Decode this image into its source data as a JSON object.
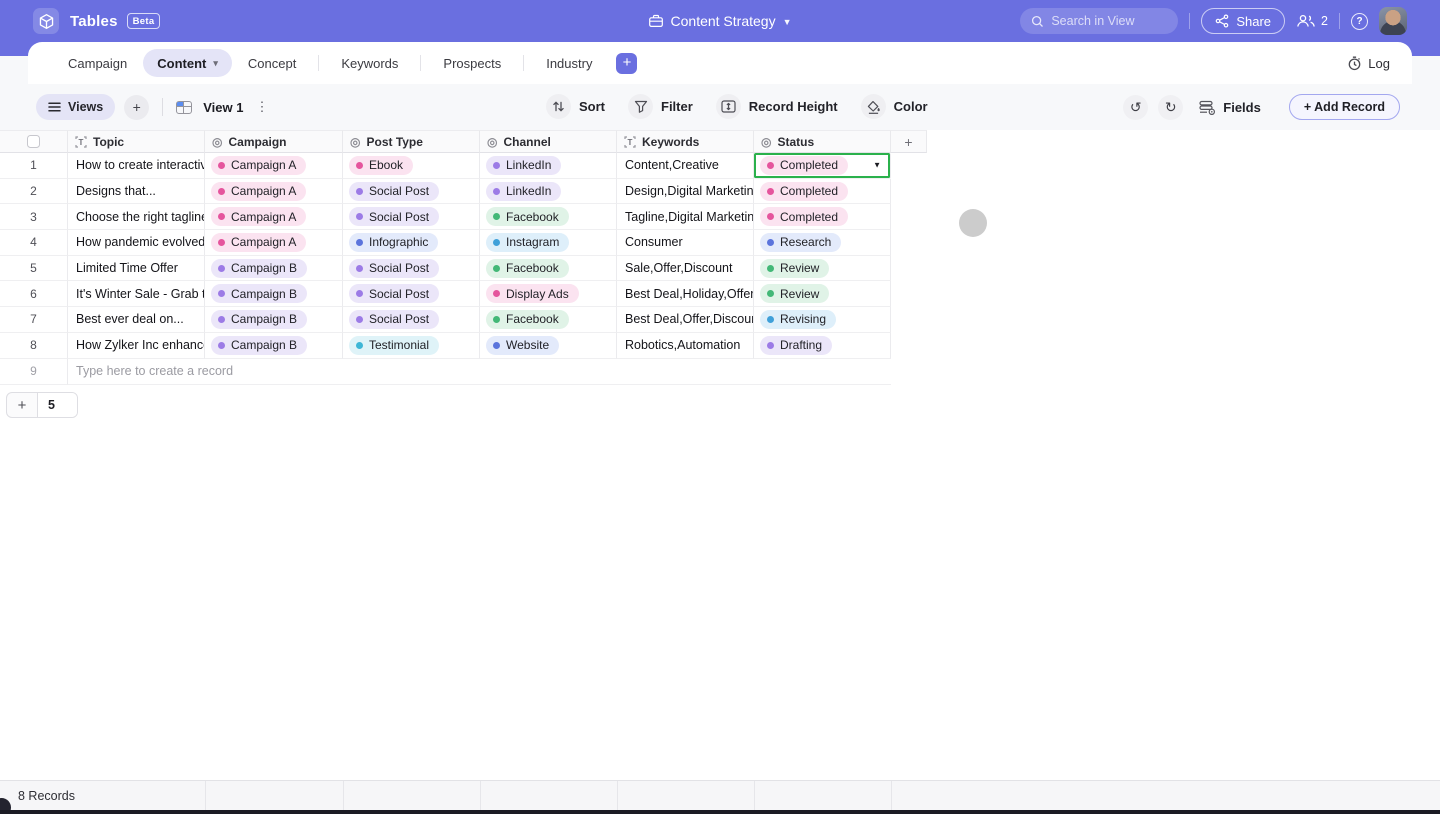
{
  "topbar": {
    "app_name": "Tables",
    "beta_badge": "Beta",
    "workspace_label": "Content Strategy",
    "search_placeholder": "Search in View",
    "share_label": "Share",
    "collaborators_count": "2"
  },
  "tabs": {
    "items": [
      {
        "label": "Campaign",
        "active": false,
        "divider_after": false
      },
      {
        "label": "Content",
        "active": true,
        "divider_after": false
      },
      {
        "label": "Concept",
        "active": false,
        "divider_after": true
      },
      {
        "label": "Keywords",
        "active": false,
        "divider_after": true
      },
      {
        "label": "Prospects",
        "active": false,
        "divider_after": true
      },
      {
        "label": "Industry",
        "active": false,
        "divider_after": false
      }
    ],
    "add_table_label": "+",
    "log_label": "Log"
  },
  "toolbar": {
    "views_label": "Views",
    "add_view_label": "+",
    "view_name": "View 1",
    "sort_label": "Sort",
    "filter_label": "Filter",
    "record_height_label": "Record Height",
    "color_label": "Color",
    "fields_label": "Fields",
    "add_record_label": "+ Add Record"
  },
  "table": {
    "columns": [
      {
        "label": "Topic",
        "icon": "text-field-icon"
      },
      {
        "label": "Campaign",
        "icon": "select-field-icon"
      },
      {
        "label": "Post Type",
        "icon": "select-field-icon"
      },
      {
        "label": "Channel",
        "icon": "select-field-icon"
      },
      {
        "label": "Keywords",
        "icon": "text-field-icon"
      },
      {
        "label": "Status",
        "icon": "select-field-icon"
      }
    ],
    "add_column_label": "+",
    "rows": [
      {
        "num": "1",
        "topic": "How to create interactiv...",
        "campaign": {
          "label": "Campaign A",
          "color": "pink"
        },
        "post_type": {
          "label": "Ebook",
          "color": "pink"
        },
        "channel": {
          "label": "LinkedIn",
          "color": "purple"
        },
        "keywords": "Content,Creative",
        "status": {
          "label": "Completed",
          "color": "pink"
        },
        "selected": true
      },
      {
        "num": "2",
        "topic": "Designs that...",
        "campaign": {
          "label": "Campaign A",
          "color": "pink"
        },
        "post_type": {
          "label": "Social Post",
          "color": "purple"
        },
        "channel": {
          "label": "LinkedIn",
          "color": "purple"
        },
        "keywords": "Design,Digital Marketing",
        "status": {
          "label": "Completed",
          "color": "pink"
        },
        "selected": false
      },
      {
        "num": "3",
        "topic": "Choose the right tagline...",
        "campaign": {
          "label": "Campaign A",
          "color": "pink"
        },
        "post_type": {
          "label": "Social Post",
          "color": "purple"
        },
        "channel": {
          "label": "Facebook",
          "color": "green"
        },
        "keywords": "Tagline,Digital Marketing",
        "status": {
          "label": "Completed",
          "color": "pink"
        },
        "selected": false
      },
      {
        "num": "4",
        "topic": "How pandemic evolved...",
        "campaign": {
          "label": "Campaign A",
          "color": "pink"
        },
        "post_type": {
          "label": "Infographic",
          "color": "indigo"
        },
        "channel": {
          "label": "Instagram",
          "color": "blue"
        },
        "keywords": "Consumer",
        "status": {
          "label": "Research",
          "color": "indigo"
        },
        "selected": false
      },
      {
        "num": "5",
        "topic": "Limited Time Offer",
        "campaign": {
          "label": "Campaign B",
          "color": "purple"
        },
        "post_type": {
          "label": "Social Post",
          "color": "purple"
        },
        "channel": {
          "label": "Facebook",
          "color": "green"
        },
        "keywords": "Sale,Offer,Discount",
        "status": {
          "label": "Review",
          "color": "green"
        },
        "selected": false
      },
      {
        "num": "6",
        "topic": "It's Winter Sale - Grab th...",
        "campaign": {
          "label": "Campaign B",
          "color": "purple"
        },
        "post_type": {
          "label": "Social Post",
          "color": "purple"
        },
        "channel": {
          "label": "Display Ads",
          "color": "pink"
        },
        "keywords": "Best Deal,Holiday,Offer",
        "status": {
          "label": "Review",
          "color": "green"
        },
        "selected": false
      },
      {
        "num": "7",
        "topic": "Best ever deal on...",
        "campaign": {
          "label": "Campaign B",
          "color": "purple"
        },
        "post_type": {
          "label": "Social Post",
          "color": "purple"
        },
        "channel": {
          "label": "Facebook",
          "color": "green"
        },
        "keywords": "Best Deal,Offer,Discount",
        "status": {
          "label": "Revising",
          "color": "blue"
        },
        "selected": false
      },
      {
        "num": "8",
        "topic": "How Zylker Inc enhance...",
        "campaign": {
          "label": "Campaign B",
          "color": "purple"
        },
        "post_type": {
          "label": "Testimonial",
          "color": "cyan"
        },
        "channel": {
          "label": "Website",
          "color": "indigo"
        },
        "keywords": "Robotics,Automation",
        "status": {
          "label": "Drafting",
          "color": "purple"
        },
        "selected": false
      }
    ],
    "new_record_row": {
      "num": "9",
      "placeholder": "Type here to create a record"
    },
    "add_rows": {
      "add_label": "+",
      "count": "5"
    }
  },
  "footer": {
    "records_label": "8 Records"
  },
  "colors": {
    "topbar_purple": "#6A6FE0",
    "selection_green": "#2BB14C",
    "chips": {
      "pink": {
        "bg": "#FBE3F0",
        "dot": "#E5559D"
      },
      "purple": {
        "bg": "#EBE6F9",
        "dot": "#9C7BE6"
      },
      "indigo": {
        "bg": "#E3EAFB",
        "dot": "#5B74DC"
      },
      "green": {
        "bg": "#E0F3E7",
        "dot": "#43B877"
      },
      "blue": {
        "bg": "#DEEFFA",
        "dot": "#3FA0D9"
      },
      "cyan": {
        "bg": "#DFF3F8",
        "dot": "#3EB6D6"
      }
    }
  }
}
